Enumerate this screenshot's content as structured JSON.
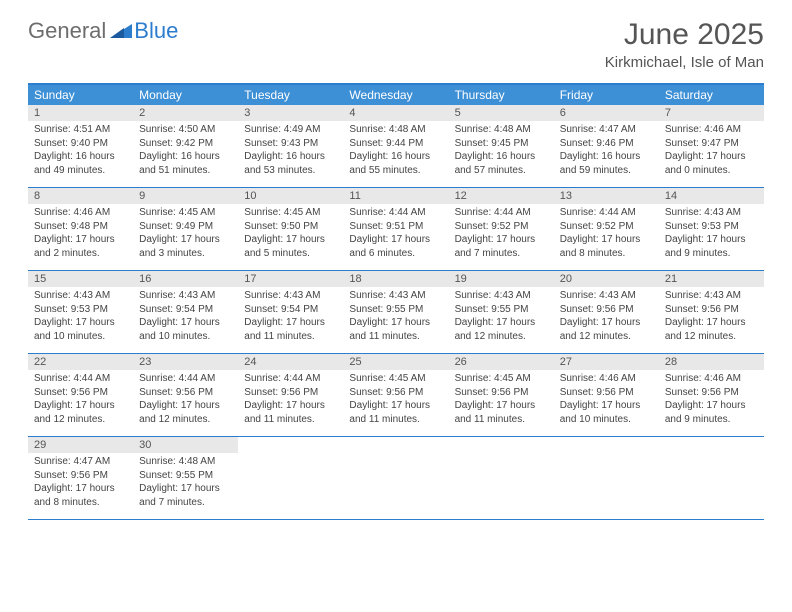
{
  "logo": {
    "text1": "General",
    "text2": "Blue"
  },
  "title": "June 2025",
  "location": "Kirkmichael, Isle of Man",
  "colors": {
    "headerBar": "#3d8fd6",
    "accentLine": "#2d7dce",
    "dayNumBg": "#e8e8e8",
    "text": "#444444"
  },
  "dayHeaders": [
    "Sunday",
    "Monday",
    "Tuesday",
    "Wednesday",
    "Thursday",
    "Friday",
    "Saturday"
  ],
  "weeks": [
    [
      {
        "n": "1",
        "sr": "Sunrise: 4:51 AM",
        "ss": "Sunset: 9:40 PM",
        "dl1": "Daylight: 16 hours",
        "dl2": "and 49 minutes."
      },
      {
        "n": "2",
        "sr": "Sunrise: 4:50 AM",
        "ss": "Sunset: 9:42 PM",
        "dl1": "Daylight: 16 hours",
        "dl2": "and 51 minutes."
      },
      {
        "n": "3",
        "sr": "Sunrise: 4:49 AM",
        "ss": "Sunset: 9:43 PM",
        "dl1": "Daylight: 16 hours",
        "dl2": "and 53 minutes."
      },
      {
        "n": "4",
        "sr": "Sunrise: 4:48 AM",
        "ss": "Sunset: 9:44 PM",
        "dl1": "Daylight: 16 hours",
        "dl2": "and 55 minutes."
      },
      {
        "n": "5",
        "sr": "Sunrise: 4:48 AM",
        "ss": "Sunset: 9:45 PM",
        "dl1": "Daylight: 16 hours",
        "dl2": "and 57 minutes."
      },
      {
        "n": "6",
        "sr": "Sunrise: 4:47 AM",
        "ss": "Sunset: 9:46 PM",
        "dl1": "Daylight: 16 hours",
        "dl2": "and 59 minutes."
      },
      {
        "n": "7",
        "sr": "Sunrise: 4:46 AM",
        "ss": "Sunset: 9:47 PM",
        "dl1": "Daylight: 17 hours",
        "dl2": "and 0 minutes."
      }
    ],
    [
      {
        "n": "8",
        "sr": "Sunrise: 4:46 AM",
        "ss": "Sunset: 9:48 PM",
        "dl1": "Daylight: 17 hours",
        "dl2": "and 2 minutes."
      },
      {
        "n": "9",
        "sr": "Sunrise: 4:45 AM",
        "ss": "Sunset: 9:49 PM",
        "dl1": "Daylight: 17 hours",
        "dl2": "and 3 minutes."
      },
      {
        "n": "10",
        "sr": "Sunrise: 4:45 AM",
        "ss": "Sunset: 9:50 PM",
        "dl1": "Daylight: 17 hours",
        "dl2": "and 5 minutes."
      },
      {
        "n": "11",
        "sr": "Sunrise: 4:44 AM",
        "ss": "Sunset: 9:51 PM",
        "dl1": "Daylight: 17 hours",
        "dl2": "and 6 minutes."
      },
      {
        "n": "12",
        "sr": "Sunrise: 4:44 AM",
        "ss": "Sunset: 9:52 PM",
        "dl1": "Daylight: 17 hours",
        "dl2": "and 7 minutes."
      },
      {
        "n": "13",
        "sr": "Sunrise: 4:44 AM",
        "ss": "Sunset: 9:52 PM",
        "dl1": "Daylight: 17 hours",
        "dl2": "and 8 minutes."
      },
      {
        "n": "14",
        "sr": "Sunrise: 4:43 AM",
        "ss": "Sunset: 9:53 PM",
        "dl1": "Daylight: 17 hours",
        "dl2": "and 9 minutes."
      }
    ],
    [
      {
        "n": "15",
        "sr": "Sunrise: 4:43 AM",
        "ss": "Sunset: 9:53 PM",
        "dl1": "Daylight: 17 hours",
        "dl2": "and 10 minutes."
      },
      {
        "n": "16",
        "sr": "Sunrise: 4:43 AM",
        "ss": "Sunset: 9:54 PM",
        "dl1": "Daylight: 17 hours",
        "dl2": "and 10 minutes."
      },
      {
        "n": "17",
        "sr": "Sunrise: 4:43 AM",
        "ss": "Sunset: 9:54 PM",
        "dl1": "Daylight: 17 hours",
        "dl2": "and 11 minutes."
      },
      {
        "n": "18",
        "sr": "Sunrise: 4:43 AM",
        "ss": "Sunset: 9:55 PM",
        "dl1": "Daylight: 17 hours",
        "dl2": "and 11 minutes."
      },
      {
        "n": "19",
        "sr": "Sunrise: 4:43 AM",
        "ss": "Sunset: 9:55 PM",
        "dl1": "Daylight: 17 hours",
        "dl2": "and 12 minutes."
      },
      {
        "n": "20",
        "sr": "Sunrise: 4:43 AM",
        "ss": "Sunset: 9:56 PM",
        "dl1": "Daylight: 17 hours",
        "dl2": "and 12 minutes."
      },
      {
        "n": "21",
        "sr": "Sunrise: 4:43 AM",
        "ss": "Sunset: 9:56 PM",
        "dl1": "Daylight: 17 hours",
        "dl2": "and 12 minutes."
      }
    ],
    [
      {
        "n": "22",
        "sr": "Sunrise: 4:44 AM",
        "ss": "Sunset: 9:56 PM",
        "dl1": "Daylight: 17 hours",
        "dl2": "and 12 minutes."
      },
      {
        "n": "23",
        "sr": "Sunrise: 4:44 AM",
        "ss": "Sunset: 9:56 PM",
        "dl1": "Daylight: 17 hours",
        "dl2": "and 12 minutes."
      },
      {
        "n": "24",
        "sr": "Sunrise: 4:44 AM",
        "ss": "Sunset: 9:56 PM",
        "dl1": "Daylight: 17 hours",
        "dl2": "and 11 minutes."
      },
      {
        "n": "25",
        "sr": "Sunrise: 4:45 AM",
        "ss": "Sunset: 9:56 PM",
        "dl1": "Daylight: 17 hours",
        "dl2": "and 11 minutes."
      },
      {
        "n": "26",
        "sr": "Sunrise: 4:45 AM",
        "ss": "Sunset: 9:56 PM",
        "dl1": "Daylight: 17 hours",
        "dl2": "and 11 minutes."
      },
      {
        "n": "27",
        "sr": "Sunrise: 4:46 AM",
        "ss": "Sunset: 9:56 PM",
        "dl1": "Daylight: 17 hours",
        "dl2": "and 10 minutes."
      },
      {
        "n": "28",
        "sr": "Sunrise: 4:46 AM",
        "ss": "Sunset: 9:56 PM",
        "dl1": "Daylight: 17 hours",
        "dl2": "and 9 minutes."
      }
    ],
    [
      {
        "n": "29",
        "sr": "Sunrise: 4:47 AM",
        "ss": "Sunset: 9:56 PM",
        "dl1": "Daylight: 17 hours",
        "dl2": "and 8 minutes."
      },
      {
        "n": "30",
        "sr": "Sunrise: 4:48 AM",
        "ss": "Sunset: 9:55 PM",
        "dl1": "Daylight: 17 hours",
        "dl2": "and 7 minutes."
      },
      null,
      null,
      null,
      null,
      null
    ]
  ]
}
